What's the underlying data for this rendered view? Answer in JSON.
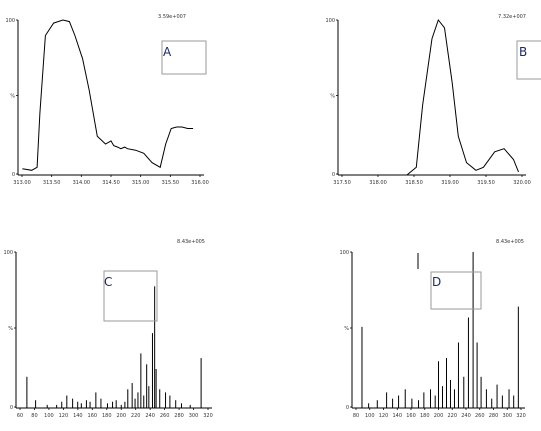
{
  "chart_data": [
    {
      "panel": "A",
      "type": "line",
      "scale_label": "3.59e+007",
      "yticks": [
        "100",
        "%",
        "0"
      ],
      "xticks": [
        "313.00",
        "313.50",
        "314.00",
        "314.50",
        "315.00",
        "315.50",
        "316.00"
      ],
      "xlim": [
        312.8,
        316.2
      ],
      "ylim": [
        0,
        100
      ],
      "x": [
        312.88,
        313.05,
        313.15,
        313.2,
        313.3,
        313.45,
        313.62,
        313.74,
        313.84,
        313.98,
        314.1,
        314.25,
        314.4,
        314.5,
        314.55,
        314.62,
        314.68,
        314.75,
        314.8,
        314.95,
        315.1,
        315.25,
        315.4,
        315.5,
        315.6,
        315.7,
        315.8,
        315.9,
        316.0
      ],
      "y": [
        4,
        3,
        5,
        40,
        90,
        98,
        100,
        99,
        90,
        75,
        55,
        25,
        20,
        22,
        19,
        18,
        17,
        18,
        17,
        16,
        14,
        8,
        5,
        20,
        30,
        31,
        31,
        30,
        30
      ]
    },
    {
      "panel": "B",
      "type": "line",
      "scale_label": "7.32e+007",
      "yticks": [
        "100",
        "%",
        "0"
      ],
      "xticks": [
        "317.50",
        "318.00",
        "318.50",
        "319.00",
        "319.50",
        "320.00"
      ],
      "xlim": [
        317.3,
        320.3
      ],
      "ylim": [
        0,
        100
      ],
      "x": [
        317.4,
        318.4,
        318.55,
        318.65,
        318.8,
        318.9,
        319.0,
        319.12,
        319.22,
        319.35,
        319.5,
        319.62,
        319.8,
        319.95,
        320.1,
        320.18
      ],
      "y": [
        0,
        0,
        5,
        45,
        88,
        100,
        95,
        60,
        25,
        8,
        3,
        5,
        15,
        17,
        10,
        2
      ]
    },
    {
      "panel": "C",
      "type": "bar",
      "scale_label": "8.43e+005",
      "yticks": [
        "100",
        "%",
        "0"
      ],
      "xticks": [
        "60",
        "80",
        "100",
        "120",
        "140",
        "160",
        "180",
        "200",
        "220",
        "240",
        "260",
        "280",
        "300",
        "320"
      ],
      "xlim": [
        50,
        320
      ],
      "ylim": [
        0,
        100
      ],
      "x": [
        65,
        77,
        93,
        106,
        113,
        120,
        128,
        135,
        140,
        147,
        152,
        160,
        167,
        176,
        183,
        188,
        195,
        200,
        204,
        210,
        214,
        218,
        222,
        226,
        230,
        233,
        238,
        241,
        243,
        248,
        256,
        262,
        270,
        278,
        290,
        305
      ],
      "y": [
        20,
        5,
        2,
        2,
        4,
        8,
        6,
        4,
        3,
        5,
        4,
        10,
        6,
        3,
        4,
        5,
        2,
        4,
        12,
        16,
        6,
        10,
        35,
        8,
        28,
        14,
        48,
        78,
        25,
        12,
        10,
        8,
        5,
        3,
        2,
        32
      ]
    },
    {
      "panel": "D",
      "type": "bar",
      "scale_label": "8.43e+005",
      "yticks": [
        "100",
        "%",
        "0"
      ],
      "xticks": [
        "80",
        "100",
        "120",
        "140",
        "160",
        "180",
        "200",
        "220",
        "240",
        "260",
        "280",
        "300",
        "320"
      ],
      "xlim": [
        70,
        330
      ],
      "ylim": [
        0,
        100
      ],
      "x": [
        85,
        95,
        108,
        122,
        131,
        140,
        150,
        160,
        170,
        178,
        188,
        195,
        200,
        206,
        212,
        218,
        224,
        230,
        238,
        245,
        252,
        258,
        264,
        272,
        280,
        288,
        296,
        306,
        313,
        320
      ],
      "y": [
        52,
        3,
        5,
        10,
        6,
        8,
        12,
        6,
        5,
        10,
        12,
        8,
        30,
        14,
        32,
        18,
        12,
        42,
        20,
        58,
        100,
        42,
        20,
        12,
        6,
        15,
        8,
        12,
        8,
        65
      ]
    }
  ],
  "labels": {
    "A": "A",
    "B": "B",
    "C": "C",
    "D": "D"
  }
}
